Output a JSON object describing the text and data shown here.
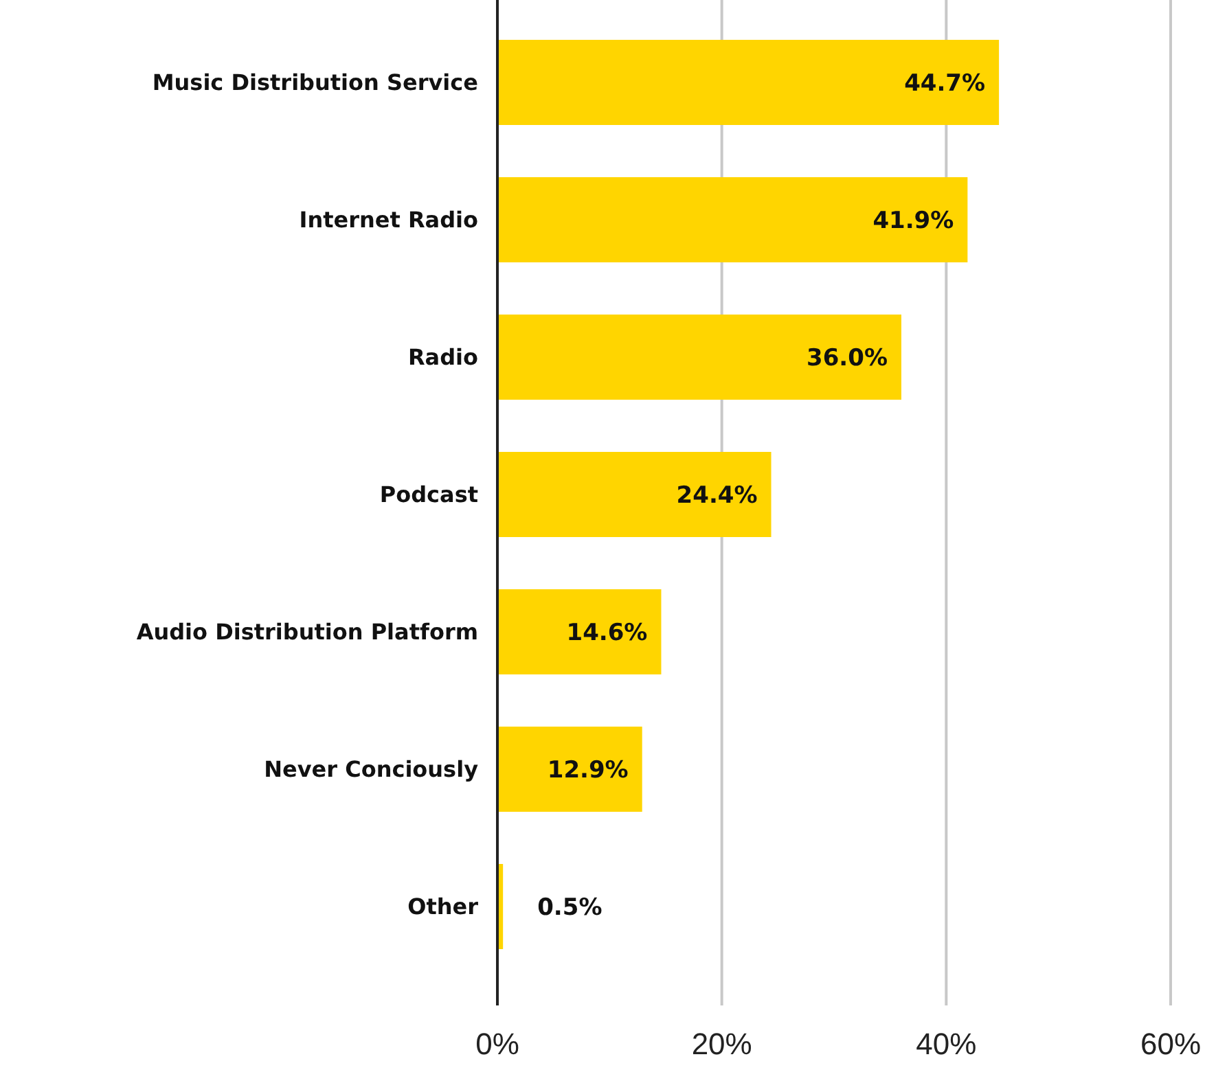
{
  "chart_data": {
    "type": "bar",
    "orientation": "horizontal",
    "categories": [
      "Music Distribution Service",
      "Internet Radio",
      "Radio",
      "Podcast",
      "Audio Distribution Platform",
      "Never Conciously",
      "Other"
    ],
    "values": [
      44.7,
      41.9,
      36.0,
      24.4,
      14.6,
      12.9,
      0.5
    ],
    "value_labels": [
      "44.7%",
      "41.9%",
      "36.0%",
      "24.4%",
      "14.6%",
      "12.9%",
      "0.5%"
    ],
    "color": "#ffd500",
    "xlim": [
      0,
      60
    ],
    "xticks": [
      {
        "value": 0,
        "label": "0%"
      },
      {
        "value": 20,
        "label": "20%"
      },
      {
        "value": 40,
        "label": "40%"
      },
      {
        "value": 60,
        "label": "60%"
      }
    ],
    "grid": "x"
  }
}
